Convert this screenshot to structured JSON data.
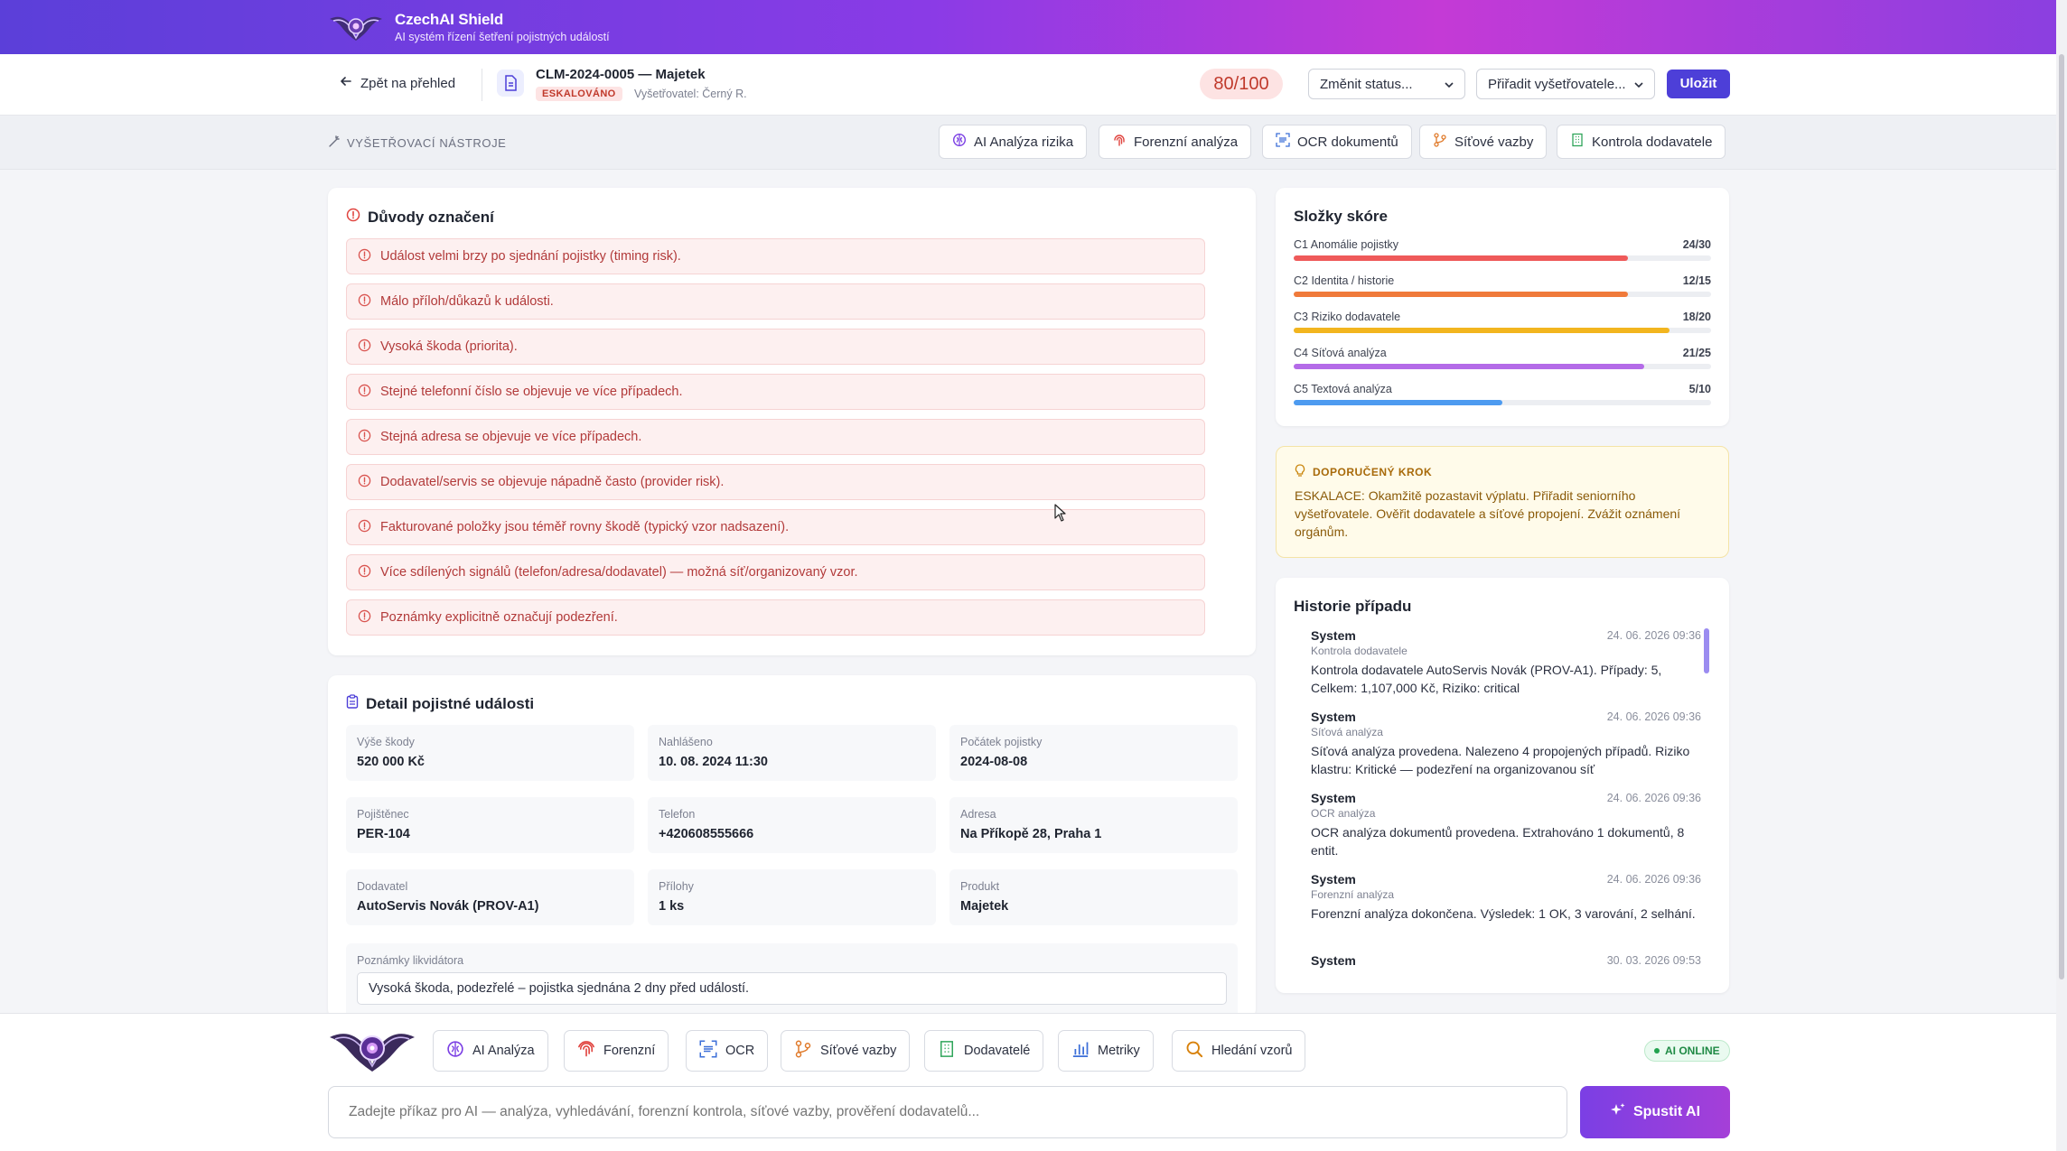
{
  "app": {
    "title": "CzechAI Shield",
    "subtitle": "AI systém řízení šetření pojistných událostí"
  },
  "casebar": {
    "back_label": "Zpět na přehled",
    "case_title": "CLM-2024-0005 — Majetek",
    "status_badge": "ESKALOVÁNO",
    "investigator": "Vyšetřovatel: Černý R.",
    "score": "80/100",
    "status_select": "Změnit status...",
    "assign_select": "Přiřadit vyšetřovatele...",
    "save_label": "Uložit"
  },
  "tools": {
    "label": "VYŠETŘOVACÍ NÁSTROJE",
    "buttons": [
      "AI Analýza rizika",
      "Forenzní analýza",
      "OCR dokumentů",
      "Síťové vazby",
      "Kontrola dodavatele"
    ]
  },
  "reasons": {
    "title": "Důvody označení",
    "items": [
      "Událost velmi brzy po sjednání pojistky (timing risk).",
      "Málo příloh/důkazů k události.",
      "Vysoká škoda (priorita).",
      "Stejné telefonní číslo se objevuje ve více případech.",
      "Stejná adresa se objevuje ve více případech.",
      "Dodavatel/servis se objevuje nápadně často (provider risk).",
      "Fakturované položky jsou téměř rovny škodě (typický vzor nadsazení).",
      "Více sdílených signálů (telefon/adresa/dodavatel) — možná síť/organizovaný vzor.",
      "Poznámky explicitně označují podezření."
    ]
  },
  "detail": {
    "title": "Detail pojistné události",
    "fields": [
      {
        "label": "Výše škody",
        "value": "520 000 Kč"
      },
      {
        "label": "Nahlášeno",
        "value": "10. 08. 2024 11:30"
      },
      {
        "label": "Počátek pojistky",
        "value": "2024-08-08"
      },
      {
        "label": "Pojištěnec",
        "value": "PER-104"
      },
      {
        "label": "Telefon",
        "value": "+420608555666"
      },
      {
        "label": "Adresa",
        "value": "Na Příkopě 28, Praha 1"
      },
      {
        "label": "Dodavatel",
        "value": "AutoServis Novák (PROV-A1)"
      },
      {
        "label": "Přílohy",
        "value": "1 ks"
      },
      {
        "label": "Produkt",
        "value": "Majetek"
      }
    ],
    "notes_label": "Poznámky likvidátora",
    "notes_value": "Vysoká škoda, podezřelé – pojistka sjednána 2 dny před událostí."
  },
  "scores": {
    "title": "Složky skóre",
    "items": [
      {
        "label": "C1 Anomálie pojistky",
        "value": "24/30",
        "fraction": 0.8,
        "color": "#ef5a5a"
      },
      {
        "label": "C2 Identita / historie",
        "value": "12/15",
        "fraction": 0.8,
        "color": "#f07a3a"
      },
      {
        "label": "C3 Riziko dodavatele",
        "value": "18/20",
        "fraction": 0.9,
        "color": "#f2b51f"
      },
      {
        "label": "C4 Síťová analýza",
        "value": "21/25",
        "fraction": 0.84,
        "color": "#b46be8"
      },
      {
        "label": "C5 Textová analýza",
        "value": "5/10",
        "fraction": 0.5,
        "color": "#4d9bf0"
      }
    ]
  },
  "recommendation": {
    "title": "DOPORUČENÝ KROK",
    "text": "ESKALACE: Okamžitě pozastavit výplatu. Přiřadit seniorního vyšetřovatele. Ověřit dodavatele a síťové propojení. Zvážit oznámení orgánům."
  },
  "history": {
    "title": "Historie případu",
    "items": [
      {
        "who": "System",
        "date": "24. 06. 2026 09:36",
        "type": "Kontrola dodavatele",
        "text": "Kontrola dodavatele AutoServis Novák (PROV-A1). Případy: 5, Celkem: 1,107,000 Kč, Riziko: critical"
      },
      {
        "who": "System",
        "date": "24. 06. 2026 09:36",
        "type": "Síťová analýza",
        "text": "Síťová analýza provedena. Nalezeno 4 propojených případů. Riziko klastru: Kritické — podezření na organizovanou síť"
      },
      {
        "who": "System",
        "date": "24. 06. 2026 09:36",
        "type": "OCR analýza",
        "text": "OCR analýza dokumentů provedena. Extrahováno 1 dokumentů, 8 entit."
      },
      {
        "who": "System",
        "date": "24. 06. 2026 09:36",
        "type": "Forenzní analýza",
        "text": "Forenzní analýza dokončena. Výsledek: 1 OK, 3 varování, 2 selhání."
      },
      {
        "who": "System",
        "date": "30. 03. 2026 09:53",
        "type": "",
        "text": ""
      }
    ]
  },
  "dock": {
    "buttons": [
      "AI Analýza",
      "Forenzní",
      "OCR",
      "Síťové vazby",
      "Dodavatelé",
      "Metriky",
      "Hledání vzorů"
    ],
    "status": "AI ONLINE",
    "input_placeholder": "Zadejte příkaz pro AI — analýza, vyhledávání, forenzní kontrola, síťové vazby, prověření dodavatelů...",
    "run_label": "Spustit AI"
  }
}
